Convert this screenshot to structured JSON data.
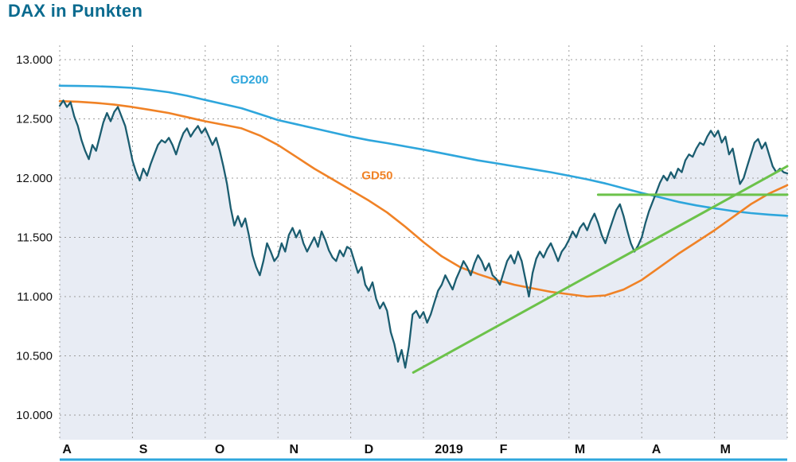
{
  "title": "DAX in Punkten",
  "chart_data": {
    "type": "line",
    "title": "DAX in Punkten",
    "ylim": [
      10000,
      13000
    ],
    "x_range": [
      0,
      10
    ],
    "grid": "dashed",
    "yticks": [
      {
        "label": "13.000",
        "value": 13000
      },
      {
        "label": "12.500",
        "value": 12500
      },
      {
        "label": "12.000",
        "value": 12000
      },
      {
        "label": "11.500",
        "value": 11500
      },
      {
        "label": "11.000",
        "value": 11000
      },
      {
        "label": "10.500",
        "value": 10500
      },
      {
        "label": "10.000",
        "value": 10000
      }
    ],
    "x_labels": [
      {
        "label": "A",
        "pos": 0.1
      },
      {
        "label": "S",
        "pos": 1.15
      },
      {
        "label": "O",
        "pos": 2.2
      },
      {
        "label": "N",
        "pos": 3.22
      },
      {
        "label": "D",
        "pos": 4.25
      },
      {
        "label": "2019",
        "pos": 5.35
      },
      {
        "label": "F",
        "pos": 6.1
      },
      {
        "label": "M",
        "pos": 7.15
      },
      {
        "label": "A",
        "pos": 8.2
      },
      {
        "label": "M",
        "pos": 9.15
      }
    ],
    "series": [
      {
        "name": "GD200",
        "color": "#2ea6dc",
        "x_start": 0,
        "x_step": 0.25,
        "values": [
          12780,
          12778,
          12775,
          12770,
          12762,
          12745,
          12725,
          12695,
          12660,
          12625,
          12590,
          12540,
          12490,
          12455,
          12420,
          12385,
          12350,
          12320,
          12295,
          12268,
          12240,
          12210,
          12180,
          12150,
          12125,
          12100,
          12075,
          12050,
          12020,
          11990,
          11955,
          11915,
          11875,
          11838,
          11800,
          11770,
          11745,
          11722,
          11705,
          11692,
          11682
        ]
      },
      {
        "name": "GD50",
        "color": "#f08226",
        "x_start": 0,
        "x_step": 0.25,
        "values": [
          12650,
          12645,
          12635,
          12620,
          12600,
          12575,
          12550,
          12515,
          12480,
          12450,
          12420,
          12360,
          12280,
          12180,
          12080,
          11990,
          11900,
          11810,
          11710,
          11590,
          11460,
          11340,
          11250,
          11190,
          11140,
          11100,
          11070,
          11040,
          11020,
          11000,
          11010,
          11060,
          11140,
          11250,
          11360,
          11460,
          11560,
          11670,
          11780,
          11870,
          11940
        ]
      },
      {
        "name": "DAX",
        "color": "#1b5d70",
        "area_fill": "#e8ecf4",
        "x_start": 0,
        "x_step": 0.05,
        "values": [
          12610,
          12655,
          12600,
          12640,
          12520,
          12440,
          12320,
          12230,
          12160,
          12280,
          12230,
          12350,
          12470,
          12550,
          12480,
          12560,
          12600,
          12520,
          12440,
          12300,
          12150,
          12050,
          11980,
          12080,
          12020,
          12120,
          12200,
          12280,
          12320,
          12300,
          12340,
          12280,
          12200,
          12300,
          12380,
          12420,
          12350,
          12400,
          12440,
          12380,
          12420,
          12350,
          12280,
          12340,
          12230,
          12100,
          11950,
          11750,
          11600,
          11680,
          11590,
          11660,
          11520,
          11350,
          11250,
          11180,
          11300,
          11450,
          11380,
          11300,
          11340,
          11450,
          11380,
          11520,
          11580,
          11500,
          11560,
          11450,
          11380,
          11440,
          11500,
          11420,
          11550,
          11480,
          11390,
          11330,
          11300,
          11390,
          11340,
          11420,
          11400,
          11300,
          11200,
          11250,
          11100,
          11050,
          11120,
          10980,
          10900,
          10950,
          10880,
          10700,
          10600,
          10450,
          10550,
          10400,
          10580,
          10850,
          10880,
          10820,
          10870,
          10780,
          10850,
          10950,
          11050,
          11100,
          11180,
          11120,
          11060,
          11150,
          11220,
          11300,
          11250,
          11180,
          11280,
          11350,
          11300,
          11220,
          11280,
          11180,
          11150,
          11100,
          11200,
          11300,
          11350,
          11280,
          11380,
          11300,
          11150,
          11000,
          11200,
          11320,
          11380,
          11330,
          11400,
          11450,
          11380,
          11300,
          11380,
          11420,
          11480,
          11550,
          11500,
          11580,
          11620,
          11560,
          11640,
          11700,
          11620,
          11520,
          11450,
          11550,
          11640,
          11730,
          11780,
          11680,
          11560,
          11450,
          11380,
          11430,
          11500,
          11620,
          11720,
          11800,
          11880,
          11960,
          12020,
          11980,
          12050,
          12000,
          12080,
          12050,
          12150,
          12200,
          12180,
          12250,
          12300,
          12280,
          12350,
          12400,
          12350,
          12400,
          12300,
          12350,
          12200,
          12250,
          12100,
          11950,
          12000,
          12100,
          12200,
          12300,
          12330,
          12250,
          12300,
          12200,
          12100,
          12050,
          12080,
          12050,
          12040
        ]
      }
    ],
    "annotations": {
      "lines": [
        {
          "name": "trend-line",
          "color": "#6cc24a",
          "width": 3,
          "points": [
            [
              4.86,
              10360
            ],
            [
              10,
              12100
            ]
          ]
        },
        {
          "name": "resistance-line",
          "color": "#6cc24a",
          "width": 3,
          "points": [
            [
              7.4,
              11860
            ],
            [
              10,
              11860
            ]
          ]
        }
      ],
      "series_labels": [
        {
          "name": "gd200-label",
          "text": "GD200",
          "x": 2.35,
          "value": 12800,
          "color": "#2ea6dc"
        },
        {
          "name": "gd50-label",
          "text": "GD50",
          "x": 4.15,
          "value": 11990,
          "color": "#f08226"
        }
      ]
    },
    "bottom_rule_color": "#2ea6dc"
  }
}
